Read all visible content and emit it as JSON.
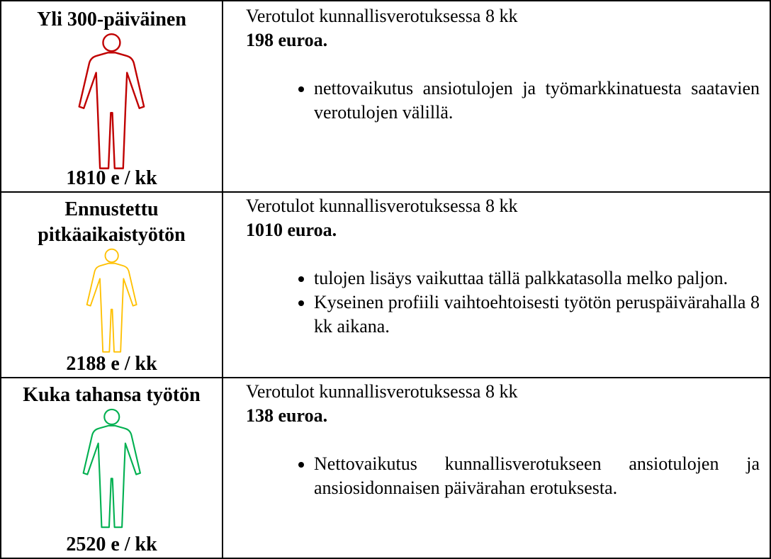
{
  "table": {
    "rows": [
      {
        "title": "Yli 300-päiväinen",
        "salary": "1810 e / kk",
        "icon_color": "#c00000",
        "tax_line": "Verotulot kunnallisverotuksessa 8 kk",
        "amount": "198 euroa.",
        "bullets": [
          "nettovaikutus ansiotulojen ja työmarkkinatuesta saatavien verotulojen välillä."
        ]
      },
      {
        "title": "Ennustettu pitkäaikaistyötön",
        "salary": "2188 e / kk",
        "icon_color": "#ffc000",
        "tax_line": "Verotulot kunnallisverotuksessa 8 kk",
        "amount": "1010 euroa.",
        "bullets": [
          "tulojen lisäys vaikuttaa tällä palkkatasolla melko paljon.",
          "Kyseinen profiili vaihtoehtoisesti työtön peruspäivärahalla 8 kk aikana."
        ]
      },
      {
        "title": "Kuka tahansa työtön",
        "salary": "2520 e / kk",
        "icon_color": "#00b050",
        "tax_line": "Verotulot kunnallisverotuksessa 8 kk",
        "amount": "138 euroa.",
        "bullets": [
          "Nettovaikutus kunnallisverotukseen ansiotulojen ja ansiosidonnaisen päivärahan erotuksesta."
        ]
      }
    ]
  }
}
